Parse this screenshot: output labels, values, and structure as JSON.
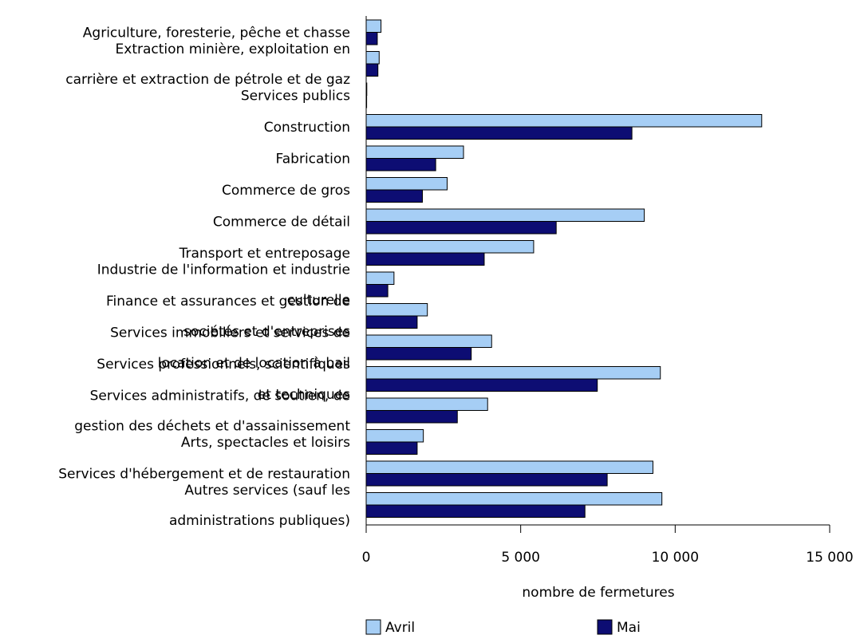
{
  "chart_data": {
    "type": "bar",
    "orientation": "horizontal",
    "categories": [
      [
        "Agriculture, foresterie, pêche et chasse"
      ],
      [
        "Extraction minière, exploitation en",
        "carrière et extraction de pétrole et de gaz"
      ],
      [
        "Services publics"
      ],
      [
        "Construction"
      ],
      [
        "Fabrication"
      ],
      [
        "Commerce de gros"
      ],
      [
        "Commerce de détail"
      ],
      [
        "Transport et entreposage"
      ],
      [
        "Industrie de l'information et industrie",
        "culturelle"
      ],
      [
        "Finance et assurances et gestion de",
        "sociétés et d'entreprises"
      ],
      [
        "Services immobiliers et services de",
        "location et de location à bail"
      ],
      [
        "Services professionnels, scientifiques",
        "et techniques"
      ],
      [
        "Services administratifs, de soutien, de",
        "gestion des déchets et d'assainissement"
      ],
      [
        "Arts, spectacles et loisirs"
      ],
      [
        "Services d'hébergement et de restauration"
      ],
      [
        "Autres services (sauf les",
        "administrations publiques)"
      ]
    ],
    "series": [
      {
        "name": "Avril",
        "color": "#a6cef5",
        "values": [
          480,
          420,
          20,
          12800,
          3150,
          2620,
          9000,
          5420,
          900,
          1980,
          4060,
          9520,
          3930,
          1850,
          9280,
          9570
        ]
      },
      {
        "name": "Mai",
        "color": "#0d0d73",
        "values": [
          360,
          380,
          15,
          8600,
          2250,
          1820,
          6150,
          3820,
          700,
          1650,
          3400,
          7480,
          2950,
          1650,
          7800,
          7080
        ]
      }
    ],
    "xlabel": "nombre de fermetures",
    "xlim": [
      0,
      15000
    ],
    "xticks": [
      0,
      5000,
      10000,
      15000
    ],
    "xtick_labels": [
      "0",
      "5 000",
      "10 000",
      "15 000"
    ],
    "legend_position": "bottom",
    "grid": false
  }
}
